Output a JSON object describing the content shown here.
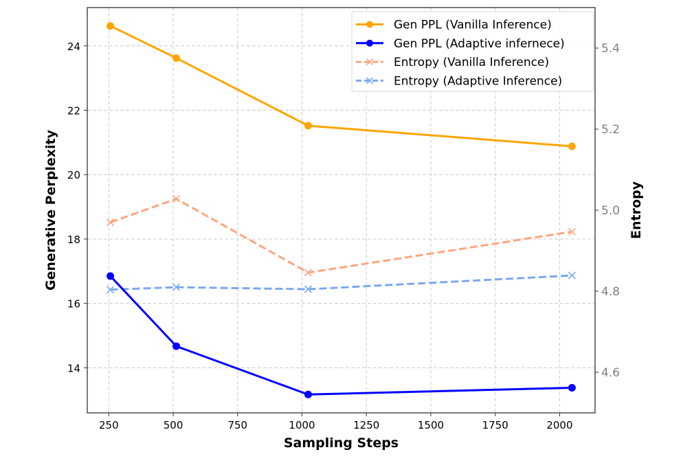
{
  "chart_data": {
    "type": "line",
    "title": "",
    "xlabel": "Sampling Steps",
    "ylabel": "Generative Perplexity",
    "ylabel_right": "Entropy",
    "x": [
      256,
      512,
      1024,
      2048
    ],
    "xlim": [
      166.4,
      2137.6
    ],
    "ylim": [
      12.6,
      25.19
    ],
    "ylim_right": [
      4.5,
      5.5
    ],
    "xticks": [
      250,
      500,
      750,
      1000,
      1250,
      1500,
      1750,
      2000
    ],
    "yticks": [
      14,
      16,
      18,
      20,
      22,
      24
    ],
    "yticks_right": [
      4.6,
      4.8,
      5.0,
      5.2,
      5.4
    ],
    "grid": true,
    "legend_position": "top-right",
    "series": [
      {
        "name": "Gen PPL (Vanilla Inference)",
        "axis": "left",
        "values": [
          24.62,
          23.62,
          21.52,
          20.88
        ],
        "color": "#FFA500",
        "style": "solid",
        "marker": "circle"
      },
      {
        "name": "Gen PPL (Adaptive infernece)",
        "axis": "left",
        "values": [
          16.85,
          14.67,
          13.17,
          13.38
        ],
        "color": "#0000FF",
        "style": "solid",
        "marker": "circle"
      },
      {
        "name": "Entropy (Vanilla Inference)",
        "axis": "right",
        "values": [
          4.97,
          5.028,
          4.846,
          4.947
        ],
        "color": "#FFA57E",
        "style": "dashed",
        "marker": "x"
      },
      {
        "name": "Entropy (Adaptive Inference)",
        "axis": "right",
        "values": [
          4.804,
          4.81,
          4.805,
          4.839
        ],
        "color": "#7AA8F2",
        "style": "dashed",
        "marker": "x"
      }
    ]
  }
}
